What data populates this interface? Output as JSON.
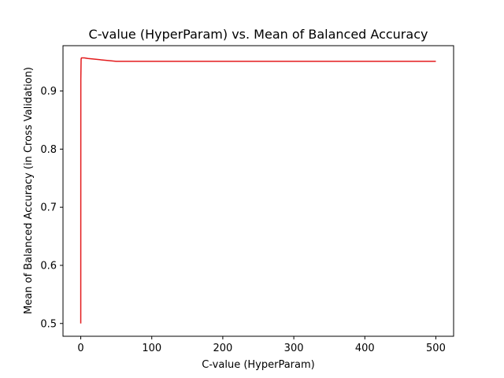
{
  "chart_data": {
    "type": "line",
    "title": "C-value (HyperParam) vs. Mean of Balanced Accuracy",
    "xlabel": "C-value (HyperParam)",
    "ylabel": "Mean of Balanced Accuracy (in Cross Validation)",
    "xlim": [
      -25,
      525
    ],
    "ylim": [
      0.478,
      0.978
    ],
    "x_ticks": [
      0,
      100,
      200,
      300,
      400,
      500
    ],
    "x_tick_labels": [
      "0",
      "100",
      "200",
      "300",
      "400",
      "500"
    ],
    "y_ticks": [
      0.5,
      0.6,
      0.7,
      0.8,
      0.9
    ],
    "y_tick_labels": [
      "0.5",
      "0.6",
      "0.7",
      "0.8",
      "0.9"
    ],
    "grid": false,
    "legend": "none",
    "series": [
      {
        "color": "#e31a1c",
        "x": [
          0.001,
          0.01,
          0.1,
          0.5,
          1,
          5,
          10,
          50,
          100,
          500
        ],
        "y": [
          0.5,
          0.5,
          0.92,
          0.955,
          0.957,
          0.957,
          0.956,
          0.951,
          0.951,
          0.951
        ]
      }
    ]
  }
}
